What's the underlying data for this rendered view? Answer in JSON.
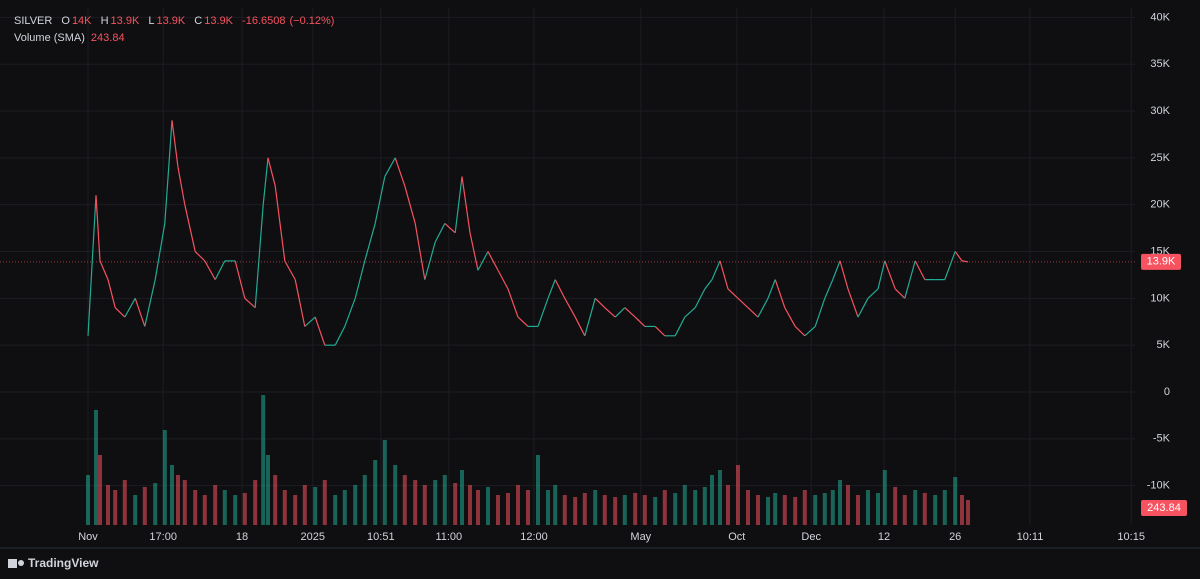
{
  "chart_data": {
    "type": "line",
    "header": {
      "symbol": "SILVER",
      "open_label": "O",
      "open": "14K",
      "high_label": "H",
      "high": "13.9K",
      "low_label": "L",
      "low": "13.9K",
      "close_label": "C",
      "close": "13.9K",
      "change": "-16.6508",
      "change_pct": "(−0.12%)",
      "volume_label": "Volume (SMA)",
      "volume_sma": "243.84"
    },
    "brand": "TradingView",
    "up_color": "#22ab94",
    "down_color": "#f7525f",
    "x": [
      0,
      1,
      1.5,
      2.5,
      3.4,
      4.6,
      5.9,
      7.1,
      8.4,
      9.6,
      10.5,
      11.25,
      12.1,
      13.4,
      14.6,
      15.9,
      17.1,
      18.4,
      19.6,
      20.9,
      21.9,
      22.5,
      23.4,
      24.6,
      25.9,
      27.1,
      28.4,
      29.6,
      30.9,
      32.1,
      33.4,
      34.6,
      35.9,
      37.1,
      38.4,
      39.6,
      40.9,
      42.1,
      43.4,
      44.6,
      45.9,
      46.75,
      47.75,
      48.75,
      50,
      51.25,
      52.5,
      53.75,
      55,
      56.25,
      57.5,
      58.4,
      59.6,
      60.9,
      62.1,
      63.4,
      64.6,
      65.9,
      67.1,
      68.4,
      69.6,
      70.9,
      72.1,
      73.4,
      74.6,
      75.9,
      77.1,
      78,
      79,
      80,
      81.25,
      82.5,
      83.75,
      85,
      85.9,
      87.1,
      88.4,
      89.6,
      90.9,
      92.1,
      93.1,
      94,
      95,
      96.25,
      97.5,
      98.75,
      99.6,
      100.9,
      102.1,
      103.4,
      104.6,
      105.9,
      107.1,
      108.4,
      109.25,
      110
    ],
    "series": [
      {
        "name": "SILVER",
        "values": [
          6000,
          21000,
          14000,
          12000,
          9000,
          8000,
          10000,
          7000,
          12000,
          18000,
          29000,
          24000,
          20000,
          15000,
          14000,
          12000,
          14000,
          14000,
          10000,
          9000,
          20000,
          25000,
          22000,
          14000,
          12000,
          7000,
          8000,
          5000,
          5000,
          7000,
          10000,
          14000,
          18000,
          23000,
          25000,
          22000,
          18000,
          12000,
          16000,
          18000,
          17000,
          23000,
          17000,
          13000,
          15000,
          13000,
          11000,
          8000,
          7000,
          7000,
          10000,
          12000,
          10000,
          8000,
          6000,
          10000,
          9000,
          8000,
          9000,
          8000,
          7000,
          7000,
          6000,
          6000,
          8000,
          9000,
          11000,
          12000,
          14000,
          11000,
          10000,
          9000,
          8000,
          10000,
          12000,
          9000,
          7000,
          6000,
          7000,
          10000,
          12000,
          14000,
          11000,
          8000,
          10000,
          11000,
          14000,
          11000,
          10000,
          14000,
          12000,
          12000,
          12000,
          15000,
          14000,
          13900
        ]
      },
      {
        "name": "Volume",
        "values": [
          500,
          1150,
          700,
          400,
          350,
          450,
          300,
          380,
          420,
          950,
          600,
          500,
          450,
          350,
          300,
          400,
          350,
          300,
          320,
          450,
          1300,
          700,
          500,
          350,
          300,
          400,
          380,
          450,
          300,
          350,
          400,
          500,
          650,
          850,
          600,
          500,
          450,
          400,
          450,
          500,
          420,
          550,
          400,
          350,
          380,
          300,
          320,
          400,
          350,
          700,
          350,
          400,
          300,
          280,
          320,
          350,
          300,
          280,
          300,
          320,
          300,
          280,
          350,
          320,
          400,
          350,
          380,
          500,
          550,
          400,
          600,
          350,
          300,
          280,
          320,
          300,
          280,
          350,
          300,
          320,
          350,
          450,
          400,
          300,
          350,
          320,
          550,
          380,
          300,
          350,
          320,
          300,
          350,
          480,
          300,
          250
        ]
      }
    ],
    "xlim": [
      -11,
      130.875
    ],
    "xticks": [
      {
        "value": 0,
        "label": "Nov"
      },
      {
        "value": 9.4,
        "label": "17:00"
      },
      {
        "value": 19.25,
        "label": "18"
      },
      {
        "value": 28.1,
        "label": "2025"
      },
      {
        "value": 36.6,
        "label": "10:51"
      },
      {
        "value": 45.1,
        "label": "11:00"
      },
      {
        "value": 55.75,
        "label": "12:00"
      },
      {
        "value": 69.1,
        "label": "May"
      },
      {
        "value": 81.1,
        "label": "Oct"
      },
      {
        "value": 90.4,
        "label": "Dec"
      },
      {
        "value": 99.5,
        "label": "12"
      },
      {
        "value": 108.4,
        "label": "26"
      },
      {
        "value": 117.75,
        "label": "10:11"
      },
      {
        "value": 130.4,
        "label": "10:15"
      }
    ],
    "ylim": [
      -14200,
      41000
    ],
    "yticks": [
      {
        "value": 40000,
        "label": "40K"
      },
      {
        "value": 35000,
        "label": "35K"
      },
      {
        "value": 30000,
        "label": "30K"
      },
      {
        "value": 25000,
        "label": "25K"
      },
      {
        "value": 20000,
        "label": "20K"
      },
      {
        "value": 15000,
        "label": "15K"
      },
      {
        "value": 10000,
        "label": "10K"
      },
      {
        "value": 5000,
        "label": "5K"
      },
      0,
      {
        "value": -5000,
        "label": "-5K"
      },
      {
        "value": -10000,
        "label": "-10K"
      }
    ],
    "grid": true
  }
}
